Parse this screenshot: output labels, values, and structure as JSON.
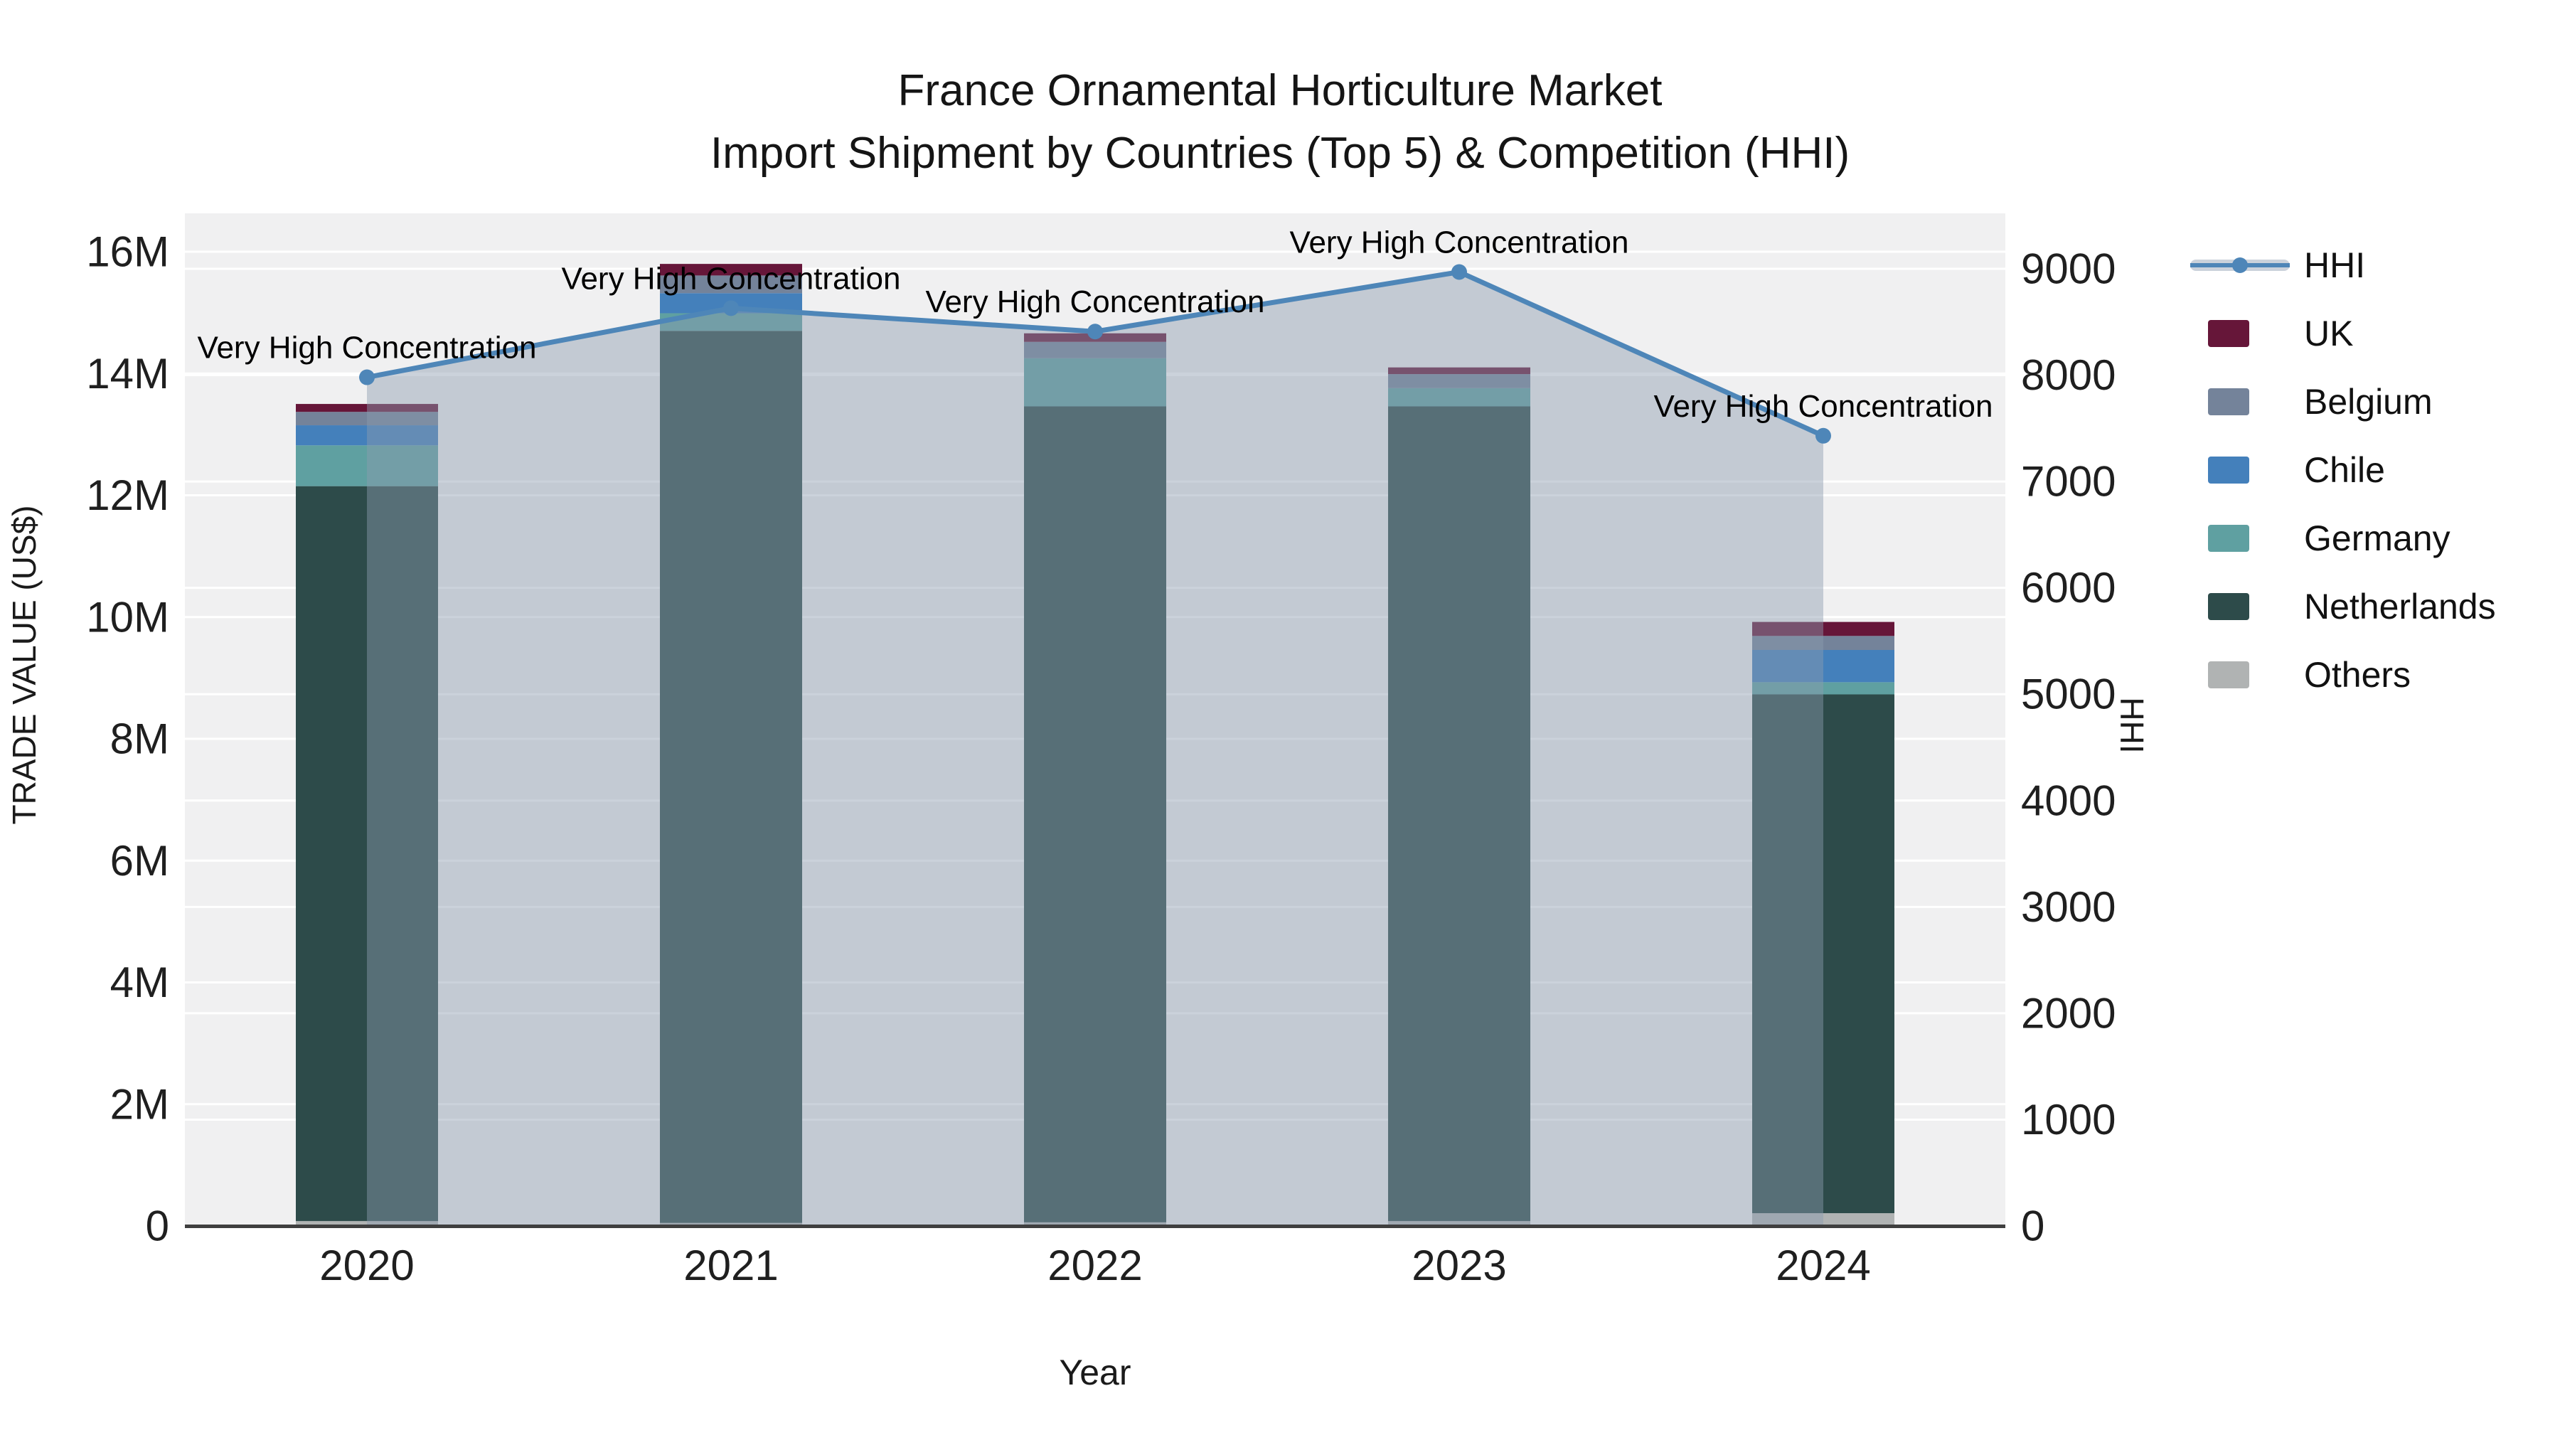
{
  "colors": {
    "accent_line": "#4e86b8",
    "area_fill": "rgba(139,155,176,0.45)",
    "legend_band": "#cbd2db",
    "plot_bg": "#f0f0f1",
    "grid": "#ffffff",
    "axis_line": "#3f3f3f",
    "text": "#1f1f1f"
  },
  "legend": [
    {
      "label": "HHI",
      "color": "#4e86b8",
      "kind": "line"
    },
    {
      "label": "UK",
      "color": "#661639",
      "kind": "box"
    },
    {
      "label": "Belgium",
      "color": "#74839a",
      "kind": "box"
    },
    {
      "label": "Chile",
      "color": "#4480bb",
      "kind": "box"
    },
    {
      "label": "Germany",
      "color": "#5fa0a1",
      "kind": "box"
    },
    {
      "label": "Netherlands",
      "color": "#2d4b4a",
      "kind": "box"
    },
    {
      "label": "Others",
      "color": "#b0b3b3",
      "kind": "box"
    }
  ],
  "chart_data": {
    "type": "stacked-bar + line combo",
    "title": "France Ornamental Horticulture Market",
    "subtitle": "Import Shipment by Countries (Top 5) & Competition (HHI)",
    "xlabel": "Year",
    "ylabel": "TRADE VALUE (US$)",
    "y2label": "HHI",
    "categories": [
      "2020",
      "2021",
      "2022",
      "2023",
      "2024"
    ],
    "series": [
      {
        "name": "Others",
        "color": "#b0b3b3",
        "values": [
          80000,
          50000,
          60000,
          80000,
          210000
        ]
      },
      {
        "name": "Netherlands",
        "color": "#2d4b4a",
        "values": [
          12070000,
          14650000,
          13400000,
          13380000,
          8520000
        ]
      },
      {
        "name": "Germany",
        "color": "#5fa0a1",
        "values": [
          670000,
          290000,
          790000,
          300000,
          200000
        ]
      },
      {
        "name": "Chile",
        "color": "#4480bb",
        "values": [
          330000,
          330000,
          0,
          0,
          530000
        ]
      },
      {
        "name": "Belgium",
        "color": "#74839a",
        "values": [
          220000,
          290000,
          270000,
          230000,
          230000
        ]
      },
      {
        "name": "UK",
        "color": "#661639",
        "values": [
          130000,
          190000,
          140000,
          110000,
          230000
        ]
      }
    ],
    "bar_totals": [
      13500000,
      15800000,
      14660000,
      14100000,
      9920000
    ],
    "line_series": {
      "name": "HHI",
      "axis": "right",
      "values": [
        7980,
        8630,
        8410,
        8970,
        7430
      ]
    },
    "annotations": [
      "Very High Concentration",
      "Very High Concentration",
      "Very High Concentration",
      "Very High Concentration",
      "Very High Concentration"
    ],
    "ylim": [
      0,
      16000000
    ],
    "y2lim": [
      0,
      9000
    ],
    "ytick_values": [
      0,
      2000000,
      4000000,
      6000000,
      8000000,
      10000000,
      12000000,
      14000000,
      16000000
    ],
    "ytick_labels": [
      "0",
      "2M",
      "4M",
      "6M",
      "8M",
      "10M",
      "12M",
      "14M",
      "16M"
    ],
    "y2tick_values": [
      0,
      1000,
      2000,
      3000,
      4000,
      5000,
      6000,
      7000,
      8000,
      9000
    ],
    "y2tick_labels": [
      "0",
      "1000",
      "2000",
      "3000",
      "4000",
      "5000",
      "6000",
      "7000",
      "8000",
      "9000"
    ],
    "grid": "on",
    "legend_position": "right"
  }
}
